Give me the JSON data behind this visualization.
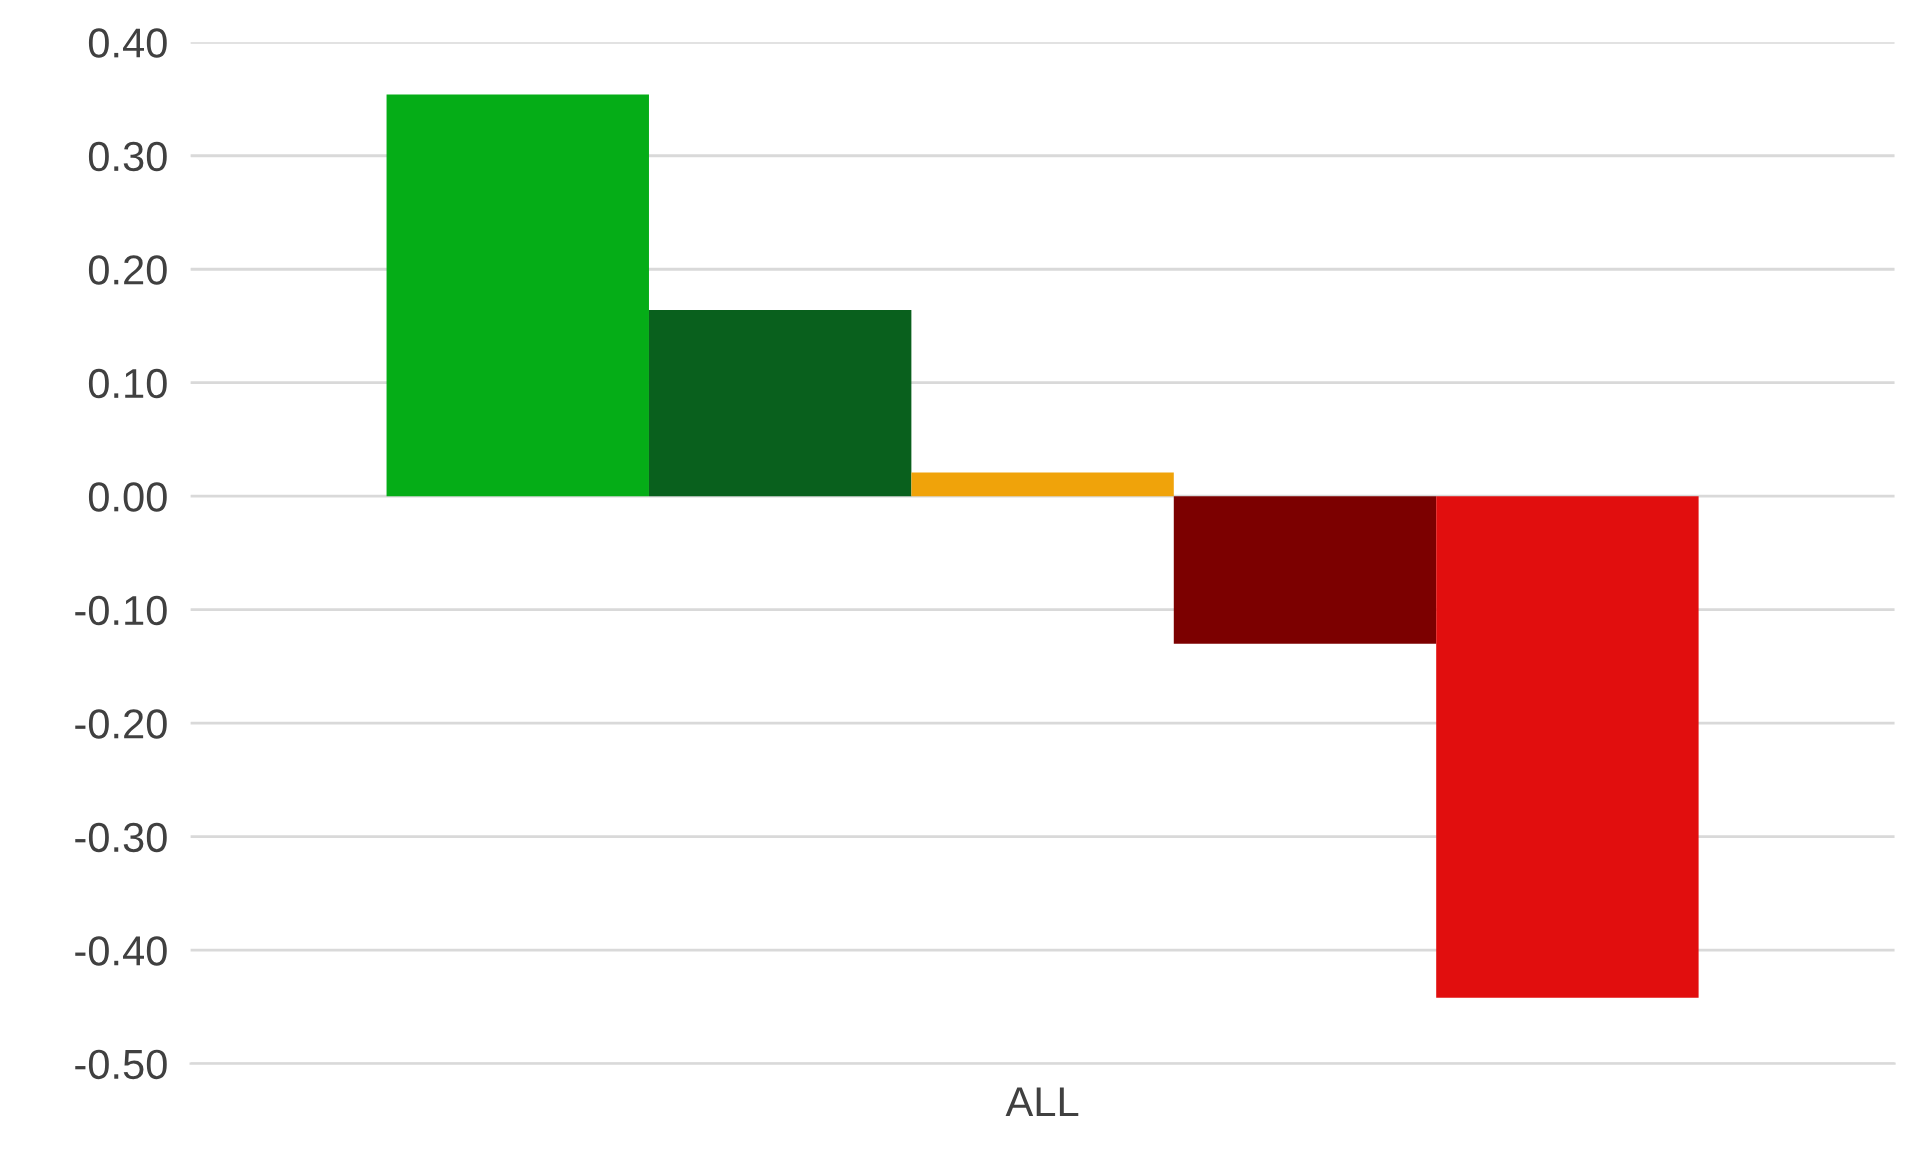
{
  "chart_data": {
    "type": "bar",
    "categories": [
      "ALL"
    ],
    "series": [
      {
        "color": "#05ad17",
        "values": [
          0.354
        ]
      },
      {
        "color": "#09601d",
        "values": [
          0.164
        ]
      },
      {
        "color": "#f0a30a",
        "values": [
          0.021
        ]
      },
      {
        "color": "#7c0000",
        "values": [
          -0.13
        ]
      },
      {
        "color": "#e10e0e",
        "values": [
          -0.442
        ]
      }
    ],
    "ylim": [
      -0.5,
      0.4
    ],
    "yticks": [
      {
        "value": -0.5,
        "label": "-0.50"
      },
      {
        "value": -0.4,
        "label": "-0.40"
      },
      {
        "value": -0.3,
        "label": "-0.30"
      },
      {
        "value": -0.2,
        "label": "-0.20"
      },
      {
        "value": -0.1,
        "label": "-0.10"
      },
      {
        "value": 0,
        "label": "0.00"
      },
      {
        "value": 0.1,
        "label": "0.10"
      },
      {
        "value": 0.2,
        "label": "0.20"
      },
      {
        "value": 0.3,
        "label": "0.30"
      },
      {
        "value": 0.4,
        "label": "0.40"
      }
    ],
    "grid": "y",
    "legend": false
  }
}
